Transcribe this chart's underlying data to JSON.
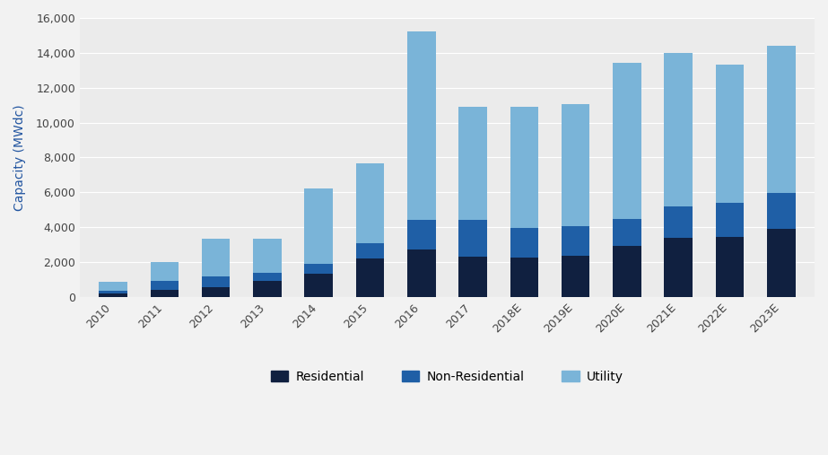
{
  "categories": [
    "2010",
    "2011",
    "2012",
    "2013",
    "2014",
    "2015",
    "2016",
    "2017",
    "2018E",
    "2019E",
    "2020E",
    "2021E",
    "2022E",
    "2023E"
  ],
  "residential": [
    200,
    400,
    550,
    900,
    1350,
    2200,
    2700,
    2300,
    2250,
    2350,
    2900,
    3400,
    3450,
    3900
  ],
  "non_residential": [
    150,
    500,
    600,
    500,
    550,
    900,
    1700,
    2100,
    1700,
    1700,
    1550,
    1800,
    1950,
    2050
  ],
  "utility": [
    500,
    1100,
    2200,
    1950,
    4300,
    4550,
    10850,
    6500,
    6950,
    7000,
    9000,
    8800,
    7900,
    8450
  ],
  "colors": {
    "residential": "#102040",
    "non_residential": "#1f5fa6",
    "utility": "#7ab4d8"
  },
  "ylabel": "Capacity (MWdc)",
  "ylim": [
    0,
    16000
  ],
  "yticks": [
    0,
    2000,
    4000,
    6000,
    8000,
    10000,
    12000,
    14000,
    16000
  ],
  "legend_labels": [
    "Residential",
    "Non-Residential",
    "Utility"
  ],
  "fig_bg_color": "#f2f2f2",
  "plot_bg_color": "#ebebeb",
  "ylabel_color": "#2255a0",
  "bar_width": 0.55,
  "tick_label_color": "#444444",
  "grid_color": "#ffffff",
  "ylabel_fontsize": 10,
  "tick_fontsize": 9,
  "legend_fontsize": 10
}
